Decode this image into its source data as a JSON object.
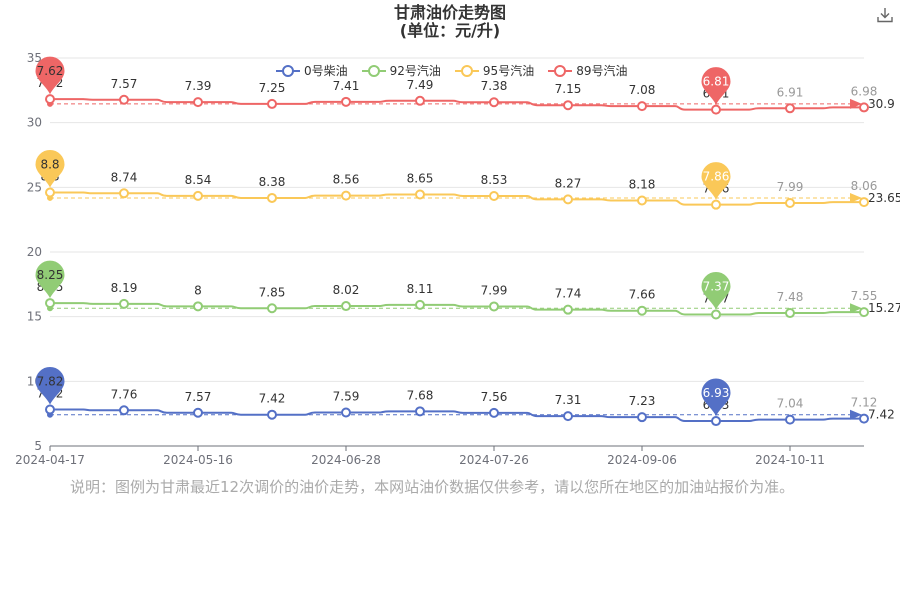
{
  "title": "甘肃油价走势图",
  "subtitle": "(单位：元/升)",
  "note": "说明：图例为甘肃最近12次调价的油价走势，本网站油价数据仅供参考，请以您所在地区的加油站报价为准。",
  "download_icon": "download-icon",
  "chart_data": {
    "type": "line",
    "title": "甘肃油价走势图",
    "subtitle": "(单位：元/升)",
    "x_labels_shown": [
      "2024-04-17",
      "2024-05-16",
      "2024-06-28",
      "2024-07-26",
      "2024-09-06",
      "2024-10-11"
    ],
    "y_ticks": [
      5,
      10,
      15,
      20,
      25,
      30,
      35
    ],
    "ylim": [
      5,
      35
    ],
    "grid": "horizontal",
    "legend_position": "top-center",
    "series": [
      {
        "name": "0号柴油",
        "color": "#5470c6",
        "offset": 0,
        "values": [
          7.82,
          7.76,
          7.57,
          7.42,
          7.59,
          7.68,
          7.56,
          7.31,
          7.23,
          6.93,
          7.04,
          7.12
        ],
        "labels": [
          "7.82",
          "7.76",
          "7.57",
          "7.42",
          "7.59",
          "7.68",
          "7.56",
          "7.31",
          "7.23",
          "6.93",
          "7.04",
          "7.12"
        ],
        "max_pin": {
          "index": 0,
          "label": "7.82"
        },
        "min_pin": {
          "index": 9,
          "label": "6.93"
        },
        "avg_label": "7.42"
      },
      {
        "name": "92号汽油",
        "color": "#91cc75",
        "offset": 7.8,
        "values": [
          8.25,
          8.19,
          8,
          7.85,
          8.02,
          8.11,
          7.99,
          7.74,
          7.66,
          7.37,
          7.48,
          7.55
        ],
        "labels": [
          "8.25",
          "8.19",
          "8",
          "7.85",
          "8.02",
          "8.11",
          "7.99",
          "7.74",
          "7.66",
          "7.37",
          "7.48",
          "7.55"
        ],
        "max_pin": {
          "index": 0,
          "label": "8.25"
        },
        "min_pin": {
          "index": 9,
          "label": "7.37"
        },
        "avg_label": "15.27"
      },
      {
        "name": "95号汽油",
        "color": "#fac858",
        "offset": 15.8,
        "values": [
          8.8,
          8.74,
          8.54,
          8.38,
          8.56,
          8.65,
          8.53,
          8.27,
          8.18,
          7.86,
          7.99,
          8.06
        ],
        "labels": [
          "8.8",
          "8.74",
          "8.54",
          "8.38",
          "8.56",
          "8.65",
          "8.53",
          "8.27",
          "8.18",
          "7.86",
          "7.99",
          "8.06"
        ],
        "max_pin": {
          "index": 0,
          "label": "8.8"
        },
        "min_pin": {
          "index": 9,
          "label": "7.86"
        },
        "avg_label": "23.65"
      },
      {
        "name": "89号汽油",
        "color": "#ee6666",
        "offset": 24.2,
        "values": [
          7.62,
          7.57,
          7.39,
          7.25,
          7.41,
          7.49,
          7.38,
          7.15,
          7.08,
          6.81,
          6.91,
          6.98
        ],
        "labels": [
          "7.62",
          "7.57",
          "7.39",
          "7.25",
          "7.41",
          "7.49",
          "7.38",
          "7.15",
          "7.08",
          "6.81",
          "6.91",
          "6.98"
        ],
        "max_pin": {
          "index": 0,
          "label": "7.62"
        },
        "min_pin": {
          "index": 9,
          "label": "6.81"
        },
        "avg_label": "30.9"
      }
    ]
  }
}
